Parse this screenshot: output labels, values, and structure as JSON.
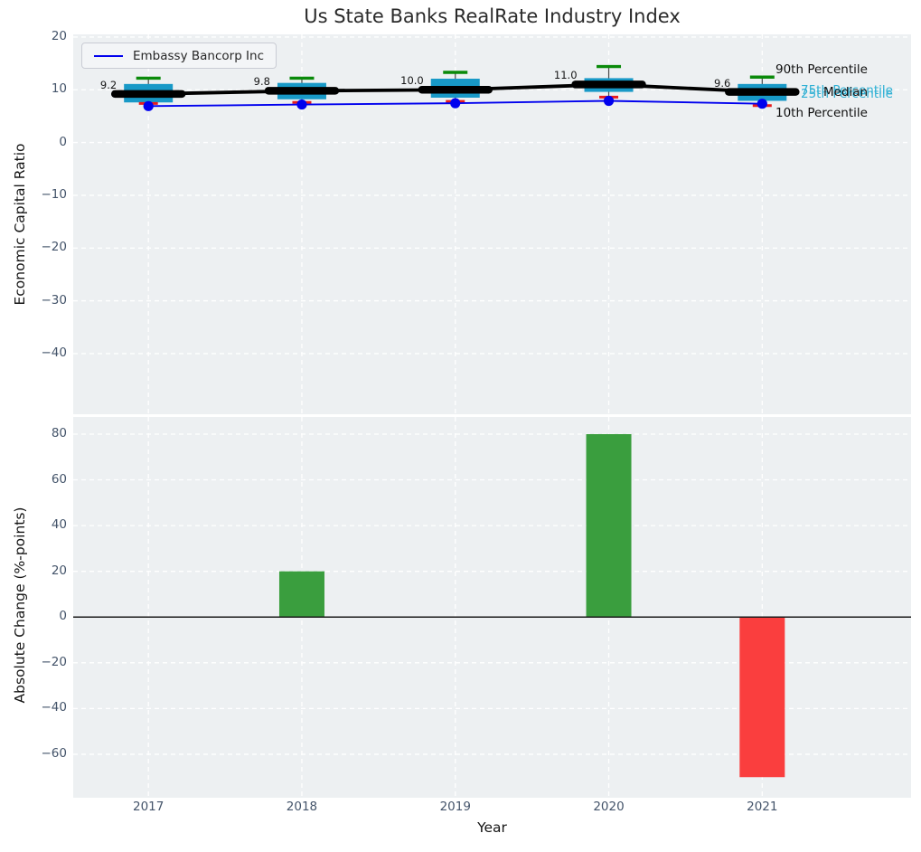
{
  "title": "Us State Banks RealRate Industry Index",
  "legend": {
    "label": "Embassy Bancorp Inc"
  },
  "annotations": {
    "p90": "90th Percentile",
    "p75": "75th Percentile",
    "median": "Median",
    "p25": "25th Percentile",
    "p10": "10th Percentile"
  },
  "colors": {
    "panel_background": "#edf0f2",
    "grid": "#ffffff",
    "tick_label": "#44546a",
    "box_fill": "#1899c7",
    "whisker_line": "#4a4a4a",
    "cap_top_green": "#0a8a0a",
    "cap_bottom_red": "#e81c1c",
    "median_black": "#000000",
    "company_blue": "#0000ee",
    "bar_positive_green": "#3a9e3e",
    "bar_negative_red": "#fa3e3e",
    "zero_line": "#1a1a1a",
    "percentile_label_cyan": "#2fb0d4"
  },
  "chart_data": [
    {
      "type": "boxplot+line",
      "title": "Us State Banks RealRate Industry Index",
      "ylabel": "Economic Capital Ratio",
      "legend": "Embassy Bancorp Inc",
      "x": [
        2017,
        2018,
        2019,
        2020,
        2021
      ],
      "yticks": [
        20,
        10,
        0,
        -10,
        -20,
        -30,
        -40
      ],
      "xlim": [
        2016.51,
        2021.97
      ],
      "ylim": [
        -51.5,
        20.5
      ],
      "grid": true,
      "legend_position": "upper left",
      "series": {
        "p90": [
          12.2,
          12.2,
          13.3,
          14.4,
          12.4
        ],
        "p75": [
          11.1,
          11.3,
          12.1,
          12.2,
          11.1
        ],
        "median": [
          9.2,
          9.8,
          10.0,
          11.0,
          9.6
        ],
        "p25": [
          7.6,
          8.2,
          8.5,
          9.6,
          7.9
        ],
        "p10": [
          7.4,
          7.6,
          7.8,
          8.6,
          7.0
        ],
        "company": [
          6.9,
          7.2,
          7.45,
          7.9,
          7.35
        ]
      },
      "median_labels": [
        "9.2",
        "9.8",
        "10.0",
        "11.0",
        "9.6"
      ]
    },
    {
      "type": "bar",
      "ylabel": "Absolute Change (%-points)",
      "xlabel": "Year",
      "categories": [
        "2017",
        "2018",
        "2019",
        "2020",
        "2021"
      ],
      "values": [
        0,
        20,
        0,
        80,
        -70
      ],
      "yticks": [
        80,
        60,
        40,
        20,
        0,
        -20,
        -40,
        -60
      ],
      "xlim": [
        2016.51,
        2021.97
      ],
      "ylim": [
        -79,
        87.5
      ],
      "grid": true
    }
  ]
}
